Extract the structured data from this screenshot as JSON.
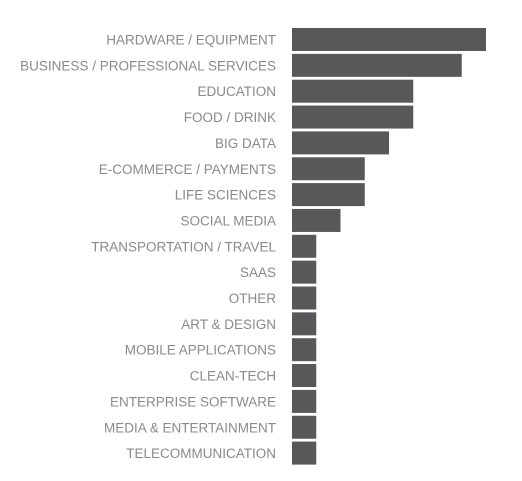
{
  "chart_data": {
    "type": "bar",
    "orientation": "horizontal",
    "title": "",
    "xlabel": "",
    "ylabel": "",
    "grid": false,
    "legend": "none",
    "xlim": [
      0,
      8
    ],
    "bar_color": "#58585a",
    "label_color": "#8a8a8a",
    "categories": [
      "HARDWARE / EQUIPMENT",
      "BUSINESS /  PROFESSIONAL SERVICES",
      "EDUCATION",
      "FOOD / DRINK",
      "BIG DATA",
      "E-COMMERCE / PAYMENTS",
      "LIFE SCIENCES",
      "SOCIAL MEDIA",
      "TRANSPORTATION / TRAVEL",
      "SAAS",
      "OTHER",
      "ART & DESIGN",
      "MOBILE APPLICATIONS",
      "CLEAN-TECH",
      "ENTERPRISE SOFTWARE",
      "MEDIA & ENTERTAINMENT",
      "TELECOMMUNICATION"
    ],
    "values": [
      8,
      7,
      5,
      5,
      4,
      3,
      3,
      2,
      1,
      1,
      1,
      1,
      1,
      1,
      1,
      1,
      1
    ]
  }
}
